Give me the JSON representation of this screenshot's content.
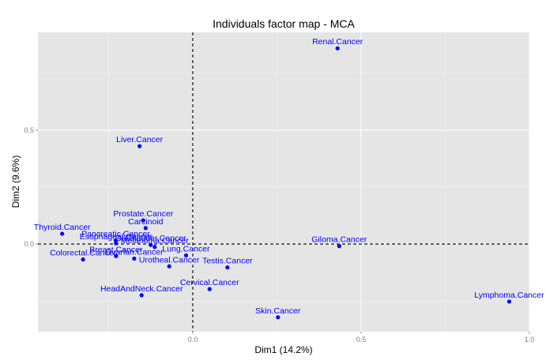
{
  "chart_data": {
    "type": "scatter",
    "title": "Individuals factor map - MCA",
    "xlabel": "Dim1 (14.2%)",
    "ylabel": "Dim2 (9.6%)",
    "xlim": [
      -0.46,
      1.0
    ],
    "ylim": [
      -0.385,
      0.93
    ],
    "x_ticks": [
      {
        "value": 0.0,
        "label": "0.0"
      },
      {
        "value": 0.5,
        "label": "0.5"
      },
      {
        "value": 1.0,
        "label": "1.0"
      }
    ],
    "y_ticks": [
      {
        "value": 0.0,
        "label": "0.0"
      },
      {
        "value": 0.5,
        "label": "0.5"
      }
    ],
    "grid": true,
    "reference_lines": {
      "x": 0,
      "y": 0,
      "style": "dashed"
    },
    "colors": {
      "points": "#0000ff",
      "labels": "#0000ff",
      "panel": "#e5e5e5",
      "grid_major": "#ffffff",
      "grid_minor": "#f2f2f2",
      "reference": "#000000"
    },
    "points": [
      {
        "label": "Renal.Cancer",
        "x": 0.43,
        "y": 0.86
      },
      {
        "label": "Liver.Cancer",
        "x": -0.158,
        "y": 0.43
      },
      {
        "label": "Prostate.Cancer",
        "x": -0.147,
        "y": 0.104
      },
      {
        "label": "Carcinoid",
        "x": -0.14,
        "y": 0.07
      },
      {
        "label": "Thyroid.Cancer",
        "x": -0.388,
        "y": 0.045
      },
      {
        "label": "Pancreatic.Cancer",
        "x": -0.229,
        "y": 0.015
      },
      {
        "label": "Esophageal.Cancer",
        "x": -0.228,
        "y": 0.003
      },
      {
        "label": "Gallbladder.Cancer",
        "x": -0.125,
        "y": -0.004
      },
      {
        "label": "Melanoma.Cancer",
        "x": -0.113,
        "y": -0.013
      },
      {
        "label": "Breast.Cancer",
        "x": -0.228,
        "y": -0.053
      },
      {
        "label": "Ovarian.Cancer",
        "x": -0.174,
        "y": -0.064
      },
      {
        "label": "Colorectal.Cancer",
        "x": -0.326,
        "y": -0.068
      },
      {
        "label": "Lung.Cancer",
        "x": -0.02,
        "y": -0.05
      },
      {
        "label": "Urotheal.Cancer",
        "x": -0.07,
        "y": -0.098
      },
      {
        "label": "Testis.Cancer",
        "x": 0.103,
        "y": -0.103
      },
      {
        "label": "Giloma.Cancer",
        "x": 0.435,
        "y": -0.009
      },
      {
        "label": "Cervical.Cancer",
        "x": 0.05,
        "y": -0.198
      },
      {
        "label": "HeadAndNeck.Cancer",
        "x": -0.152,
        "y": -0.225
      },
      {
        "label": "Skin.Cancer",
        "x": 0.253,
        "y": -0.322
      },
      {
        "label": "Lymphoma.Cancer",
        "x": 0.94,
        "y": -0.253
      }
    ]
  }
}
